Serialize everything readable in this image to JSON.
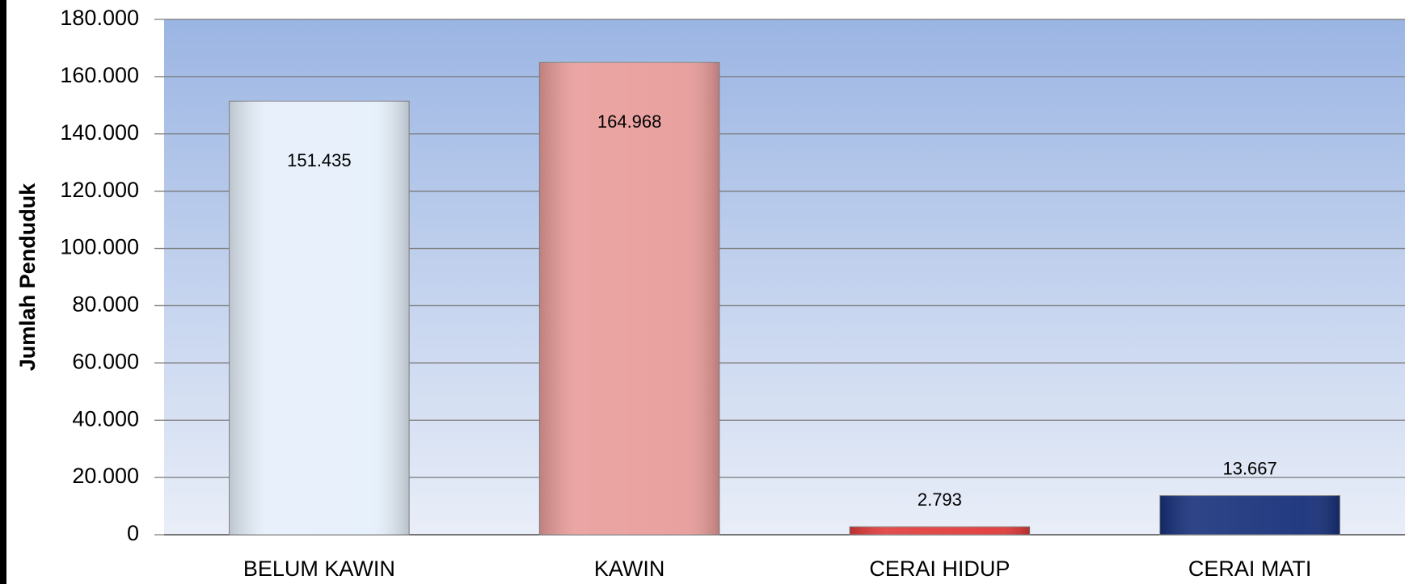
{
  "chart_data": {
    "type": "bar",
    "y_axis_label": "Jumlah Penduduk",
    "categories": [
      "BELUM KAWIN",
      "KAWIN",
      "CERAI HIDUP",
      "CERAI MATI"
    ],
    "values": [
      151435,
      164968,
      2793,
      13667
    ],
    "value_labels": [
      "151.435",
      "164.968",
      "2.793",
      "13.667"
    ],
    "colors": [
      "#e6f0fb",
      "#e89c9a",
      "#e03a3a",
      "#17307a"
    ],
    "ylim": [
      0,
      180000
    ],
    "yticks": [
      0,
      {
        "value": 20000,
        "label": "20.000"
      },
      {
        "value": 40000,
        "label": "40.000"
      },
      {
        "value": 60000,
        "label": "60.000"
      },
      {
        "value": 80000,
        "label": "80.000"
      },
      {
        "value": 100000,
        "label": "100.000"
      },
      {
        "value": 120000,
        "label": "120.000"
      },
      {
        "value": 140000,
        "label": "140.000"
      },
      {
        "value": 160000,
        "label": "160.000"
      },
      {
        "value": 180000,
        "label": "180.000"
      }
    ],
    "grid": true
  }
}
